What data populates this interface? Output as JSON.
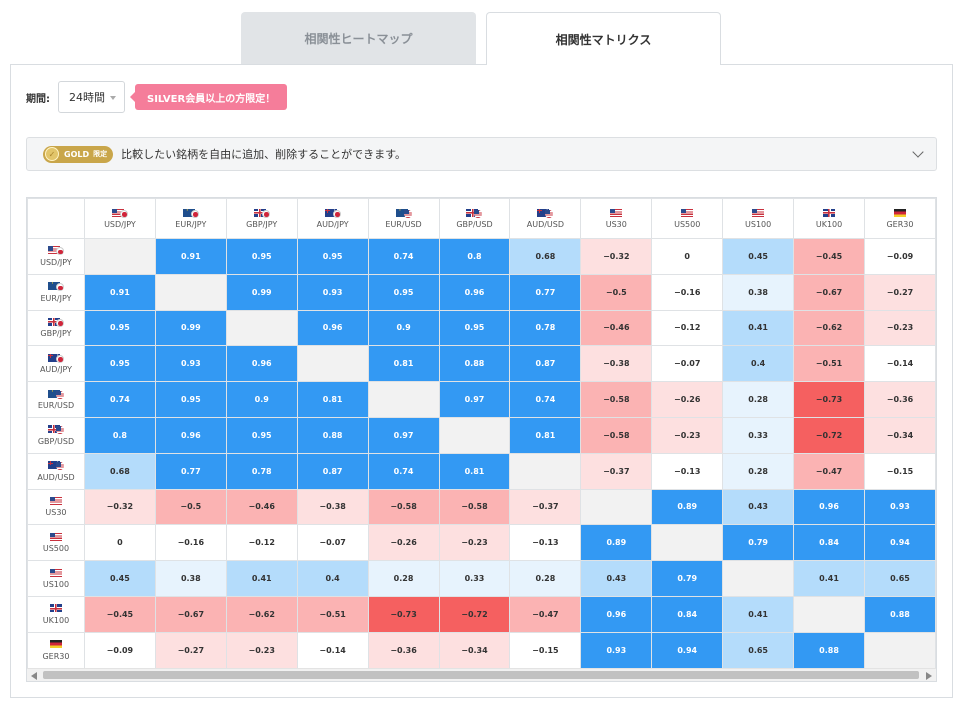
{
  "tabs": [
    {
      "label": "相関性ヒートマップ",
      "active": false
    },
    {
      "label": "相関性マトリクス",
      "active": true
    }
  ],
  "period": {
    "label": "期間:",
    "value": "24時間",
    "badge": "SILVER会員以上の方限定！"
  },
  "gold_bar": {
    "badge_label": "GOLD",
    "badge_suffix": "限定",
    "text": "比較したい銘柄を自由に追加、削除することができます。"
  },
  "colors": {
    "pos_strong": "#3399f3",
    "neg_strong": "#f56060",
    "diag": "#f2f2f2"
  },
  "symbols": [
    {
      "label": "USD/JPY",
      "flags": [
        "us",
        "jp"
      ]
    },
    {
      "label": "EUR/JPY",
      "flags": [
        "eu",
        "jp"
      ]
    },
    {
      "label": "GBP/JPY",
      "flags": [
        "gb",
        "jp"
      ]
    },
    {
      "label": "AUD/JPY",
      "flags": [
        "au",
        "jp"
      ]
    },
    {
      "label": "EUR/USD",
      "flags": [
        "eu",
        "us"
      ]
    },
    {
      "label": "GBP/USD",
      "flags": [
        "gb",
        "us"
      ]
    },
    {
      "label": "AUD/USD",
      "flags": [
        "au",
        "us"
      ]
    },
    {
      "label": "US30",
      "flags": [
        "us"
      ]
    },
    {
      "label": "US500",
      "flags": [
        "us"
      ]
    },
    {
      "label": "US100",
      "flags": [
        "us"
      ]
    },
    {
      "label": "UK100",
      "flags": [
        "gb"
      ]
    },
    {
      "label": "GER30",
      "flags": [
        "de"
      ]
    }
  ],
  "matrix": [
    [
      null,
      "0.91",
      "0.95",
      "0.95",
      "0.74",
      "0.8",
      "0.68",
      "-0.32",
      "0",
      "0.45",
      "-0.45",
      "-0.09"
    ],
    [
      "0.91",
      null,
      "0.99",
      "0.93",
      "0.95",
      "0.96",
      "0.77",
      "-0.5",
      "-0.16",
      "0.38",
      "-0.67",
      "-0.27"
    ],
    [
      "0.95",
      "0.99",
      null,
      "0.96",
      "0.9",
      "0.95",
      "0.78",
      "-0.46",
      "-0.12",
      "0.41",
      "-0.62",
      "-0.23"
    ],
    [
      "0.95",
      "0.93",
      "0.96",
      null,
      "0.81",
      "0.88",
      "0.87",
      "-0.38",
      "-0.07",
      "0.4",
      "-0.51",
      "-0.14"
    ],
    [
      "0.74",
      "0.95",
      "0.9",
      "0.81",
      null,
      "0.97",
      "0.74",
      "-0.58",
      "-0.26",
      "0.28",
      "-0.73",
      "-0.36"
    ],
    [
      "0.8",
      "0.96",
      "0.95",
      "0.88",
      "0.97",
      null,
      "0.81",
      "-0.58",
      "-0.23",
      "0.33",
      "-0.72",
      "-0.34"
    ],
    [
      "0.68",
      "0.77",
      "0.78",
      "0.87",
      "0.74",
      "0.81",
      null,
      "-0.37",
      "-0.13",
      "0.28",
      "-0.47",
      "-0.15"
    ],
    [
      "-0.32",
      "-0.5",
      "-0.46",
      "-0.38",
      "-0.58",
      "-0.58",
      "-0.37",
      null,
      "0.89",
      "0.43",
      "0.96",
      "0.93"
    ],
    [
      "0",
      "-0.16",
      "-0.12",
      "-0.07",
      "-0.26",
      "-0.23",
      "-0.13",
      "0.89",
      null,
      "0.79",
      "0.84",
      "0.94"
    ],
    [
      "0.45",
      "0.38",
      "0.41",
      "0.4",
      "0.28",
      "0.33",
      "0.28",
      "0.43",
      "0.79",
      null,
      "0.41",
      "0.65"
    ],
    [
      "-0.45",
      "-0.67",
      "-0.62",
      "-0.51",
      "-0.73",
      "-0.72",
      "-0.47",
      "0.96",
      "0.84",
      "0.41",
      null,
      "0.88"
    ],
    [
      "-0.09",
      "-0.27",
      "-0.23",
      "-0.14",
      "-0.36",
      "-0.34",
      "-0.15",
      "0.93",
      "0.94",
      "0.65",
      "0.88",
      null
    ]
  ]
}
